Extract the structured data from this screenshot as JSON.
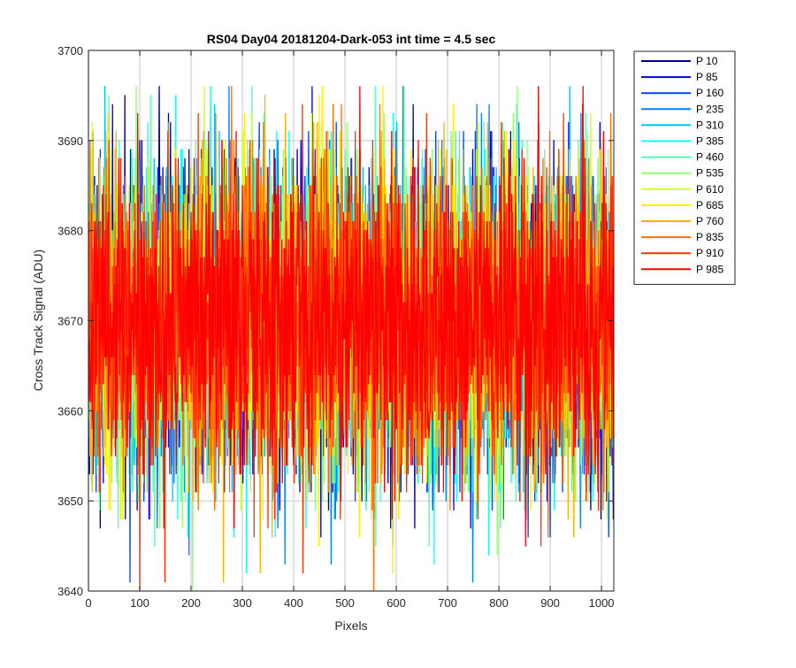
{
  "chart_data": {
    "type": "line",
    "title": "RS04 Day04 20181204-Dark-053 int time = 4.5 sec",
    "xlabel": "Pixels",
    "ylabel": "Cross Track Signal (ADU)",
    "xlim": [
      0,
      1024
    ],
    "ylim": [
      3640,
      3700
    ],
    "xticks": [
      0,
      100,
      200,
      300,
      400,
      500,
      600,
      700,
      800,
      900,
      1000
    ],
    "yticks": [
      3640,
      3650,
      3660,
      3670,
      3680,
      3690,
      3700
    ],
    "grid": true,
    "legend_position": "outside-top-right",
    "noise_model": {
      "n_points": 1024,
      "mean": 3670,
      "std": 8.5,
      "min": 3640,
      "max": 3696
    },
    "series": [
      {
        "name": "P 10",
        "color": "#00008f"
      },
      {
        "name": "P 85",
        "color": "#0000e0"
      },
      {
        "name": "P 160",
        "color": "#0040ff"
      },
      {
        "name": "P 235",
        "color": "#0080ff"
      },
      {
        "name": "P 310",
        "color": "#00c0ff"
      },
      {
        "name": "P 385",
        "color": "#10ffef"
      },
      {
        "name": "P 460",
        "color": "#50ffaf"
      },
      {
        "name": "P 535",
        "color": "#90ff70"
      },
      {
        "name": "P 610",
        "color": "#cfff30"
      },
      {
        "name": "P 685",
        "color": "#ffef00"
      },
      {
        "name": "P 760",
        "color": "#ffb000"
      },
      {
        "name": "P 835",
        "color": "#ff7000"
      },
      {
        "name": "P 910",
        "color": "#ff3000"
      },
      {
        "name": "P 985",
        "color": "#ff0000"
      }
    ]
  }
}
